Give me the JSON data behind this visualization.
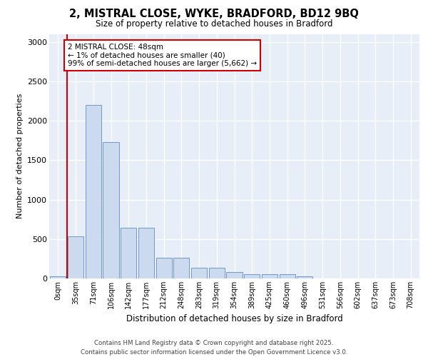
{
  "title": "2, MISTRAL CLOSE, WYKE, BRADFORD, BD12 9BQ",
  "subtitle": "Size of property relative to detached houses in Bradford",
  "xlabel": "Distribution of detached houses by size in Bradford",
  "ylabel": "Number of detached properties",
  "categories": [
    "0sqm",
    "35sqm",
    "71sqm",
    "106sqm",
    "142sqm",
    "177sqm",
    "212sqm",
    "248sqm",
    "283sqm",
    "319sqm",
    "354sqm",
    "389sqm",
    "425sqm",
    "460sqm",
    "496sqm",
    "531sqm",
    "566sqm",
    "602sqm",
    "637sqm",
    "673sqm",
    "708sqm"
  ],
  "bar_values": [
    28,
    530,
    2200,
    1730,
    645,
    645,
    265,
    265,
    135,
    135,
    82,
    55,
    55,
    50,
    25,
    0,
    0,
    0,
    0,
    0,
    0
  ],
  "bar_color": "#ccdaf0",
  "bar_edge_color": "#7099c8",
  "vline_x": 0.5,
  "vline_color": "#cc0000",
  "annotation_text": "2 MISTRAL CLOSE: 48sqm\n← 1% of detached houses are smaller (40)\n99% of semi-detached houses are larger (5,662) →",
  "annotation_box_color": "#ffffff",
  "annotation_box_edge": "#cc0000",
  "ylim": [
    0,
    3100
  ],
  "yticks": [
    0,
    500,
    1000,
    1500,
    2000,
    2500,
    3000
  ],
  "footer": "Contains HM Land Registry data © Crown copyright and database right 2025.\nContains public sector information licensed under the Open Government Licence v3.0.",
  "bg_color": "#ffffff",
  "plot_bg_color": "#e8eef8",
  "grid_color": "#ffffff"
}
